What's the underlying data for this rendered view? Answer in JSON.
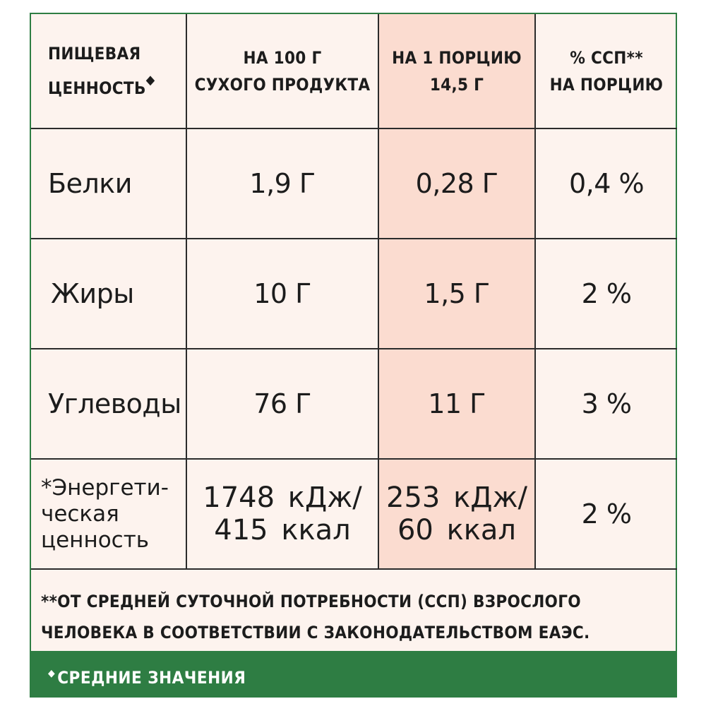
{
  "table": {
    "headers": {
      "col1": "ПИЩЕВАЯ\nЦЕННОСТЬ",
      "col1_mark": "◆",
      "col2": "НА 100 Г\nСУХОГО ПРОДУКТА",
      "col3": "НА 1 ПОРЦИЮ\n14,5 Г",
      "col4": "% ССП**\nНА ПОРЦИЮ"
    },
    "rows": [
      {
        "name": "Белки",
        "per100": "1,9 Г",
        "perServing": "0,28 Г",
        "dv": "0,4 %"
      },
      {
        "name": "Жиры",
        "per100": "10 Г",
        "perServing": "1,5 Г",
        "dv": "2 %"
      },
      {
        "name": "Углеводы",
        "per100": "76 Г",
        "perServing": "11 Г",
        "dv": "3 %"
      },
      {
        "name": "*Энергети-\nческая\nценность",
        "per100": "1748 кДж/\n415  ккал",
        "perServing": "253 кДж/\n60  ккал",
        "dv": "2 %"
      }
    ]
  },
  "footnote": "**ОТ СРЕДНЕЙ СУТОЧНОЙ ПОТРЕБНОСТИ (ССП) ВЗРОСЛОГО\n   ЧЕЛОВЕКА В СООТВЕТСТВИИ С ЗАКОНОДАТЕЛЬСТВОМ ЕАЭС.",
  "bottom_bar": {
    "mark": "◆",
    "text": "СРЕДНИЕ ЗНАЧЕНИЯ"
  },
  "colors": {
    "background": "#fdf3ee",
    "highlight_column": "#fbdcd0",
    "border_green": "#2e7d43",
    "grid": "#2b2b2b"
  }
}
